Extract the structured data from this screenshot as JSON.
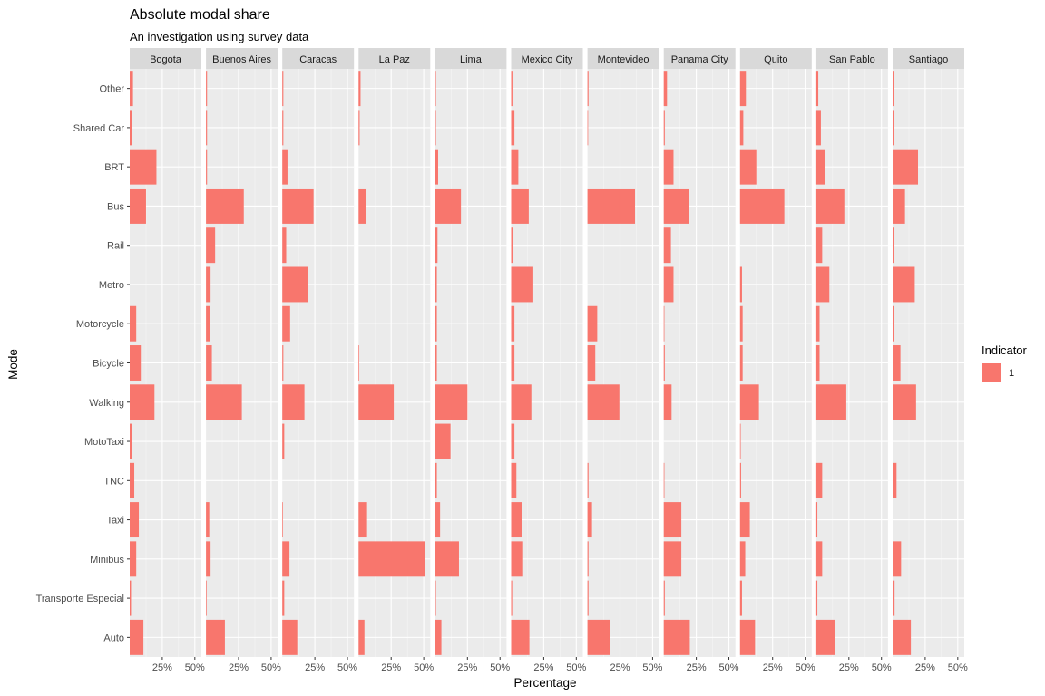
{
  "chart_data": {
    "type": "bar",
    "orientation": "horizontal",
    "title": "Absolute modal share",
    "subtitle": "An investigation using survey data",
    "xlabel": "Percentage",
    "ylabel": "Mode",
    "xlim": [
      0,
      0.55
    ],
    "x_ticks": [
      0.25,
      0.5
    ],
    "x_tick_labels": [
      "25%",
      "50%"
    ],
    "grid": true,
    "legend": {
      "title": "Indicator",
      "position": "right",
      "entries": [
        {
          "label": "1",
          "color": "#f8766d"
        }
      ]
    },
    "bar_color": "#f8766d",
    "panel_background": "#ebebeb",
    "strip_background": "#d9d9d9",
    "categories": [
      "Other",
      "Shared Car",
      "BRT",
      "Bus",
      "Rail",
      "Metro",
      "Motorcycle",
      "Bicycle",
      "Walking",
      "MotoTaxi",
      "TNC",
      "Taxi",
      "Minibus",
      "Transporte Especial",
      "Auto"
    ],
    "facets": [
      {
        "name": "Bogota",
        "values": [
          0.025,
          0.015,
          0.205,
          0.125,
          0,
          0,
          0.05,
          0.085,
          0.19,
          0.015,
          0.035,
          0.07,
          0.05,
          0.01,
          0.105
        ]
      },
      {
        "name": "Buenos Aires",
        "values": [
          0.008,
          0.008,
          0.008,
          0.29,
          0.07,
          0.035,
          0.03,
          0.045,
          0.275,
          0,
          0,
          0.025,
          0.035,
          0.005,
          0.145
        ]
      },
      {
        "name": "Caracas",
        "values": [
          0.008,
          0.008,
          0.04,
          0.24,
          0.03,
          0.2,
          0.06,
          0.008,
          0.17,
          0.015,
          0,
          0.005,
          0.055,
          0.015,
          0.115
        ]
      },
      {
        "name": "La Paz",
        "values": [
          0.015,
          0.008,
          0,
          0.06,
          0,
          0,
          0,
          0.005,
          0.27,
          0,
          0,
          0.065,
          0.51,
          0,
          0.045
        ]
      },
      {
        "name": "Lima",
        "values": [
          0.008,
          0.008,
          0.025,
          0.2,
          0.02,
          0.015,
          0.015,
          0.015,
          0.25,
          0.12,
          0.015,
          0.04,
          0.185,
          0.008,
          0.05
        ]
      },
      {
        "name": "Mexico City",
        "values": [
          0.01,
          0.025,
          0.055,
          0.135,
          0.015,
          0.17,
          0.025,
          0.025,
          0.155,
          0.025,
          0.04,
          0.08,
          0.085,
          0.008,
          0.14
        ]
      },
      {
        "name": "Montevideo",
        "values": [
          0.008,
          0.005,
          0,
          0.365,
          0,
          0,
          0.075,
          0.06,
          0.245,
          0,
          0.008,
          0.035,
          0.008,
          0.008,
          0.17
        ]
      },
      {
        "name": "Panama City",
        "values": [
          0.025,
          0.008,
          0.075,
          0.195,
          0.055,
          0.075,
          0.005,
          0.008,
          0.06,
          0,
          0.005,
          0.135,
          0.135,
          0.008,
          0.2
        ]
      },
      {
        "name": "Quito",
        "values": [
          0.045,
          0.025,
          0.125,
          0.34,
          0,
          0.015,
          0.02,
          0.02,
          0.145,
          0.005,
          0.008,
          0.075,
          0.04,
          0.015,
          0.115
        ]
      },
      {
        "name": "San Pablo",
        "values": [
          0.015,
          0.035,
          0.07,
          0.215,
          0.045,
          0.1,
          0.025,
          0.025,
          0.23,
          0,
          0.045,
          0.008,
          0.045,
          0.008,
          0.145
        ]
      },
      {
        "name": "Santiago",
        "values": [
          0.008,
          0.008,
          0.195,
          0.095,
          0.008,
          0.17,
          0.008,
          0.06,
          0.18,
          0,
          0.03,
          0,
          0.065,
          0.015,
          0.14
        ]
      }
    ]
  }
}
